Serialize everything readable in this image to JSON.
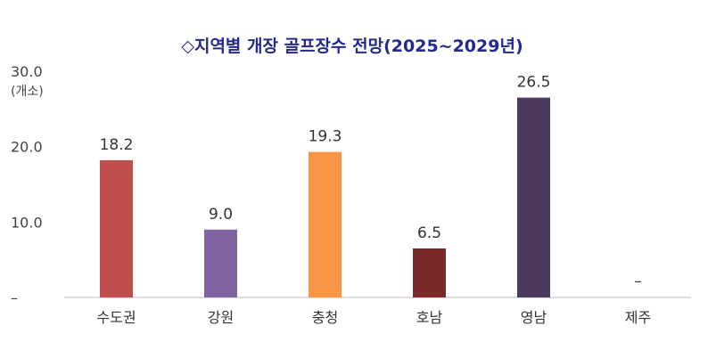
{
  "chart_data": {
    "type": "bar",
    "title": "◇지역별 개장 골프장수 전망(2025~2029년)",
    "unit": "(개소)",
    "categories": [
      "수도권",
      "강원",
      "충청",
      "호남",
      "영남",
      "제주"
    ],
    "values": [
      18.2,
      9.0,
      19.3,
      6.5,
      26.5,
      null
    ],
    "value_labels": [
      "18.2",
      "9.0",
      "19.3",
      "6.5",
      "26.5",
      "–"
    ],
    "colors": [
      "#c0504d",
      "#8064a2",
      "#f79646",
      "#7b2a2a",
      "#4b3a5e",
      "#ffffff"
    ],
    "yticks": [
      "–",
      "10.0",
      "20.0",
      "30.0"
    ],
    "ylim": [
      0,
      30
    ],
    "grid": false,
    "legend": "none"
  }
}
